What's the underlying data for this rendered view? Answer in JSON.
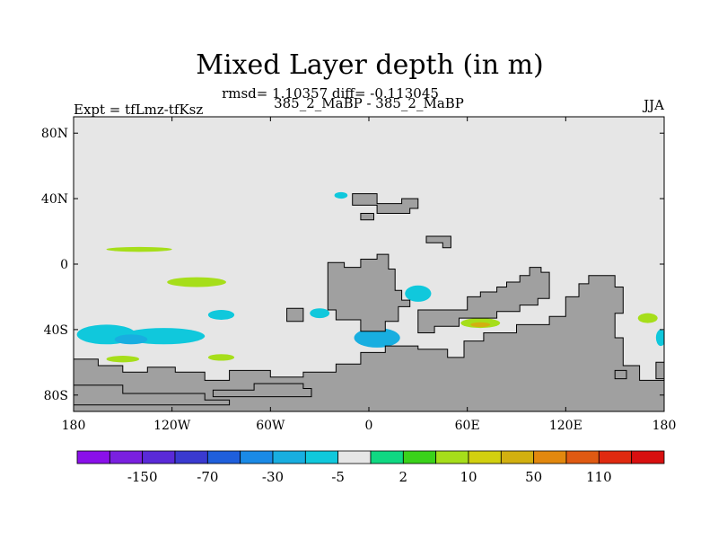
{
  "chart_data": {
    "type": "heatmap",
    "title": "Mixed Layer depth (in m)",
    "stats_line": "rmsd= 1.10357 diff= -0.113045",
    "subtitle": "385_2_MaBP - 385_2_MaBP",
    "left_label": "Expt = tfLmz-tfKsz",
    "right_label": "JJA",
    "xlim": [
      -180,
      180
    ],
    "ylim": [
      -90,
      90
    ],
    "x_ticks": [
      {
        "value": -180,
        "label": "180"
      },
      {
        "value": -120,
        "label": "120W"
      },
      {
        "value": -60,
        "label": "60W"
      },
      {
        "value": 0,
        "label": "0"
      },
      {
        "value": 60,
        "label": "60E"
      },
      {
        "value": 120,
        "label": "120E"
      },
      {
        "value": 180,
        "label": "180"
      }
    ],
    "y_ticks": [
      {
        "value": 80,
        "label": "80N"
      },
      {
        "value": 40,
        "label": "40N"
      },
      {
        "value": 0,
        "label": "0"
      },
      {
        "value": -40,
        "label": "40S"
      },
      {
        "value": -80,
        "label": "80S"
      }
    ],
    "colorbar": {
      "colors": [
        "#8a10ea",
        "#7a20e0",
        "#5a2ad8",
        "#3a3ad0",
        "#1f5fdc",
        "#1a8ae6",
        "#18aee0",
        "#10c8dc",
        "#e6e6e6",
        "#10d882",
        "#3ad21a",
        "#a6de1a",
        "#d2d010",
        "#d2b010",
        "#e2880e",
        "#e05a12",
        "#e02a10",
        "#d81010"
      ],
      "labels": [
        {
          "index": 1,
          "text": "-150"
        },
        {
          "index": 3,
          "text": "-70"
        },
        {
          "index": 5,
          "text": "-30"
        },
        {
          "index": 7,
          "text": "-5"
        },
        {
          "index": 9,
          "text": "2"
        },
        {
          "index": 11,
          "text": "10"
        },
        {
          "index": 13,
          "text": "50"
        },
        {
          "index": 15,
          "text": "110"
        }
      ]
    },
    "background_color": "#e6e6e6",
    "land_color": "#a0a0a0",
    "land": [
      {
        "name": "continent-africa-west",
        "points": [
          [
            -25,
            1
          ],
          [
            -15,
            1
          ],
          [
            -15,
            -2
          ],
          [
            -5,
            -2
          ],
          [
            -5,
            3
          ],
          [
            5,
            3
          ],
          [
            5,
            6
          ],
          [
            12,
            6
          ],
          [
            12,
            -3
          ],
          [
            16,
            -3
          ],
          [
            16,
            -16
          ],
          [
            20,
            -16
          ],
          [
            20,
            -22
          ],
          [
            25,
            -22
          ],
          [
            25,
            -26
          ],
          [
            18,
            -26
          ],
          [
            18,
            -35
          ],
          [
            10,
            -35
          ],
          [
            10,
            -41
          ],
          [
            -5,
            -41
          ],
          [
            -5,
            -34
          ],
          [
            -20,
            -34
          ],
          [
            -20,
            -28
          ],
          [
            -25,
            -28
          ]
        ]
      },
      {
        "name": "antarctica",
        "points": [
          [
            -180,
            -58
          ],
          [
            -165,
            -58
          ],
          [
            -165,
            -62
          ],
          [
            -150,
            -62
          ],
          [
            -150,
            -66
          ],
          [
            -135,
            -66
          ],
          [
            -135,
            -63
          ],
          [
            -118,
            -63
          ],
          [
            -118,
            -66
          ],
          [
            -100,
            -66
          ],
          [
            -100,
            -71
          ],
          [
            -85,
            -71
          ],
          [
            -85,
            -65
          ],
          [
            -60,
            -65
          ],
          [
            -60,
            -69
          ],
          [
            -40,
            -69
          ],
          [
            -40,
            -66
          ],
          [
            -20,
            -66
          ],
          [
            -20,
            -61
          ],
          [
            -5,
            -61
          ],
          [
            -5,
            -54
          ],
          [
            10,
            -54
          ],
          [
            10,
            -50
          ],
          [
            30,
            -50
          ],
          [
            30,
            -52
          ],
          [
            48,
            -52
          ],
          [
            48,
            -57
          ],
          [
            58,
            -57
          ],
          [
            58,
            -47
          ],
          [
            70,
            -47
          ],
          [
            70,
            -42
          ],
          [
            90,
            -42
          ],
          [
            90,
            -37
          ],
          [
            110,
            -37
          ],
          [
            110,
            -32
          ],
          [
            120,
            -32
          ],
          [
            120,
            -20
          ],
          [
            128,
            -20
          ],
          [
            128,
            -12
          ],
          [
            134,
            -12
          ],
          [
            134,
            -7
          ],
          [
            150,
            -7
          ],
          [
            150,
            -14
          ],
          [
            155,
            -14
          ],
          [
            155,
            -30
          ],
          [
            150,
            -30
          ],
          [
            150,
            -45
          ],
          [
            155,
            -45
          ],
          [
            155,
            -62
          ],
          [
            165,
            -62
          ],
          [
            165,
            -71
          ],
          [
            180,
            -71
          ],
          [
            180,
            -90
          ],
          [
            -180,
            -90
          ]
        ]
      },
      {
        "name": "antarctic-peninsula",
        "points": [
          [
            -180,
            -74
          ],
          [
            -150,
            -74
          ],
          [
            -150,
            -79
          ],
          [
            -100,
            -79
          ],
          [
            -100,
            -83
          ],
          [
            -85,
            -83
          ],
          [
            -85,
            -86
          ],
          [
            -180,
            -86
          ]
        ]
      },
      {
        "name": "south-america-tip",
        "points": [
          [
            -95,
            -77
          ],
          [
            -70,
            -77
          ],
          [
            -70,
            -73
          ],
          [
            -40,
            -73
          ],
          [
            -40,
            -76
          ],
          [
            -35,
            -76
          ],
          [
            -35,
            -81
          ],
          [
            -95,
            -81
          ]
        ]
      },
      {
        "name": "australia-land",
        "points": [
          [
            30,
            -28
          ],
          [
            60,
            -28
          ],
          [
            60,
            -20
          ],
          [
            68,
            -20
          ],
          [
            68,
            -17
          ],
          [
            78,
            -17
          ],
          [
            78,
            -14
          ],
          [
            84,
            -14
          ],
          [
            84,
            -11
          ],
          [
            92,
            -11
          ],
          [
            92,
            -7
          ],
          [
            98,
            -7
          ],
          [
            98,
            -2
          ],
          [
            105,
            -2
          ],
          [
            105,
            -5
          ],
          [
            110,
            -5
          ],
          [
            110,
            -21
          ],
          [
            103,
            -21
          ],
          [
            103,
            -25
          ],
          [
            92,
            -25
          ],
          [
            92,
            -29
          ],
          [
            78,
            -29
          ],
          [
            78,
            -33
          ],
          [
            55,
            -33
          ],
          [
            55,
            -38
          ],
          [
            40,
            -38
          ],
          [
            40,
            -42
          ],
          [
            30,
            -42
          ]
        ]
      },
      {
        "name": "asia-fragment",
        "points": [
          [
            -10,
            43
          ],
          [
            5,
            43
          ],
          [
            5,
            37
          ],
          [
            20,
            37
          ],
          [
            20,
            40
          ],
          [
            30,
            40
          ],
          [
            30,
            34
          ],
          [
            25,
            34
          ],
          [
            25,
            31
          ],
          [
            5,
            31
          ],
          [
            5,
            36
          ],
          [
            -10,
            36
          ]
        ]
      },
      {
        "name": "asia-small-1",
        "points": [
          [
            -5,
            31
          ],
          [
            3,
            31
          ],
          [
            3,
            27
          ],
          [
            -5,
            27
          ]
        ]
      },
      {
        "name": "asia-small-2",
        "points": [
          [
            35,
            17
          ],
          [
            50,
            17
          ],
          [
            50,
            10
          ],
          [
            45,
            10
          ],
          [
            45,
            13
          ],
          [
            35,
            13
          ]
        ]
      },
      {
        "name": "sub-island-1",
        "points": [
          [
            150,
            -65
          ],
          [
            157,
            -65
          ],
          [
            157,
            -70
          ],
          [
            150,
            -70
          ]
        ]
      },
      {
        "name": "east-rim",
        "points": [
          [
            175,
            -60
          ],
          [
            180,
            -60
          ],
          [
            180,
            -70
          ],
          [
            175,
            -70
          ]
        ]
      },
      {
        "name": "pacific-isle",
        "points": [
          [
            -50,
            -27
          ],
          [
            -40,
            -27
          ],
          [
            -40,
            -35
          ],
          [
            -50,
            -35
          ]
        ]
      }
    ],
    "anomalies": [
      {
        "name": "anomaly-south-pacific-west",
        "value": -5,
        "cx": -160,
        "cy": -43,
        "rx": 18,
        "ry": 6
      },
      {
        "name": "anomaly-south-pacific-mid",
        "value": -5,
        "cx": -125,
        "cy": -44,
        "rx": 25,
        "ry": 5
      },
      {
        "name": "anomaly-south-pacific-deep",
        "value": -10,
        "cx": -145,
        "cy": -46,
        "rx": 10,
        "ry": 3
      },
      {
        "name": "anomaly-south-indian",
        "value": -10,
        "cx": 5,
        "cy": -45,
        "rx": 14,
        "ry": 6
      },
      {
        "name": "anomaly-indian-ocean",
        "value": -5,
        "cx": 30,
        "cy": -18,
        "rx": 8,
        "ry": 5
      },
      {
        "name": "anomaly-south-atlantic",
        "value": -5,
        "cx": -90,
        "cy": -31,
        "rx": 8,
        "ry": 3
      },
      {
        "name": "anomaly-north-atlantic",
        "value": -5,
        "cx": -17,
        "cy": 42,
        "rx": 4,
        "ry": 2
      },
      {
        "name": "anomaly-east-indian",
        "value": 10,
        "cx": 68,
        "cy": -36,
        "rx": 12,
        "ry": 3
      },
      {
        "name": "anomaly-east-indian-core",
        "value": 50,
        "cx": 68,
        "cy": -37,
        "rx": 6,
        "ry": 1.5
      },
      {
        "name": "anomaly-equator-pacific",
        "value": 10,
        "cx": -105,
        "cy": -11,
        "rx": 18,
        "ry": 3
      },
      {
        "name": "anomaly-trop-pacific",
        "value": 10,
        "cx": -140,
        "cy": 9,
        "rx": 20,
        "ry": 1.5
      },
      {
        "name": "anomaly-south-pacific-pos",
        "value": 10,
        "cx": -150,
        "cy": -58,
        "rx": 10,
        "ry": 2
      },
      {
        "name": "anomaly-sw-pacific-pos",
        "value": 10,
        "cx": -90,
        "cy": -57,
        "rx": 8,
        "ry": 2
      },
      {
        "name": "anomaly-east-pacific-pos",
        "value": 10,
        "cx": 170,
        "cy": -33,
        "rx": 6,
        "ry": 3
      },
      {
        "name": "anomaly-far-east",
        "value": -5,
        "cx": 178,
        "cy": -45,
        "rx": 3,
        "ry": 5
      },
      {
        "name": "anomaly-pacific-cell",
        "value": -5,
        "cx": -30,
        "cy": -30,
        "rx": 6,
        "ry": 3
      }
    ]
  }
}
